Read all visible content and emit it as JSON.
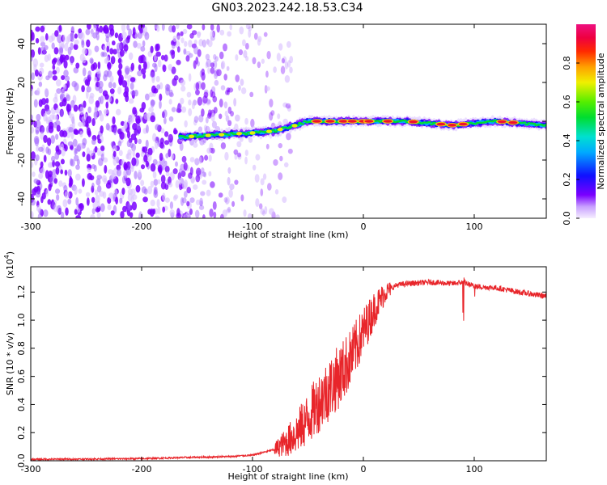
{
  "title": "GN03.2023.242.18.53.C34",
  "chart_data": [
    {
      "type": "heatmap",
      "xlabel": "Height of straight line (km)",
      "ylabel": "Frequency (Hz)",
      "xlim": [
        -300,
        165
      ],
      "ylim": [
        -50,
        50
      ],
      "xticks": [
        -300,
        -200,
        -100,
        0,
        100
      ],
      "yticks": [
        -40,
        -20,
        0,
        20,
        40
      ],
      "colorbar": {
        "label": "Normalized spectral amplitude",
        "range": [
          0,
          1
        ],
        "ticks": [
          "0.0",
          "0.2",
          "0.4",
          "0.6",
          "0.8"
        ],
        "tick_values": [
          0.0,
          0.2,
          0.4,
          0.6,
          0.8
        ]
      },
      "ridge": {
        "x": [
          -160,
          -130,
          -100,
          -80,
          -60,
          -50,
          -40,
          -20,
          0,
          40,
          80,
          120,
          165
        ],
        "y": [
          -8,
          -7,
          -6,
          -5,
          -2,
          0,
          0,
          0,
          0,
          0,
          -2,
          0,
          -2
        ]
      },
      "noise_region": {
        "x_start": -300,
        "x_end": -95
      }
    },
    {
      "type": "line",
      "xlabel": "Height of straight line (km)",
      "ylabel": "SNR (10 * v/v)",
      "yscale_label": "(x10",
      "yscale_exponent": "4",
      "multiplier": 10000,
      "xlim": [
        -300,
        165
      ],
      "ylim": [
        0,
        1.38
      ],
      "xticks": [
        -300,
        -200,
        -100,
        0,
        100
      ],
      "yticks": [
        "0.0",
        "0.2",
        "0.4",
        "0.6",
        "0.8",
        "1.0",
        "1.2"
      ],
      "ytick_values": [
        0.0,
        0.2,
        0.4,
        0.6,
        0.8,
        1.0,
        1.2
      ],
      "series": [
        {
          "color": "#e8252a",
          "x": [
            -300,
            -250,
            -200,
            -150,
            -120,
            -100,
            -80,
            -70,
            -60,
            -50,
            -40,
            -30,
            -20,
            -10,
            0,
            10,
            20,
            30,
            40,
            60,
            80,
            90,
            100,
            120,
            140,
            165
          ],
          "y": [
            0.01,
            0.012,
            0.015,
            0.025,
            0.03,
            0.04,
            0.08,
            0.13,
            0.2,
            0.3,
            0.42,
            0.52,
            0.62,
            0.75,
            0.92,
            1.08,
            1.2,
            1.25,
            1.26,
            1.27,
            1.26,
            1.27,
            1.24,
            1.23,
            1.2,
            1.17
          ]
        }
      ]
    }
  ]
}
